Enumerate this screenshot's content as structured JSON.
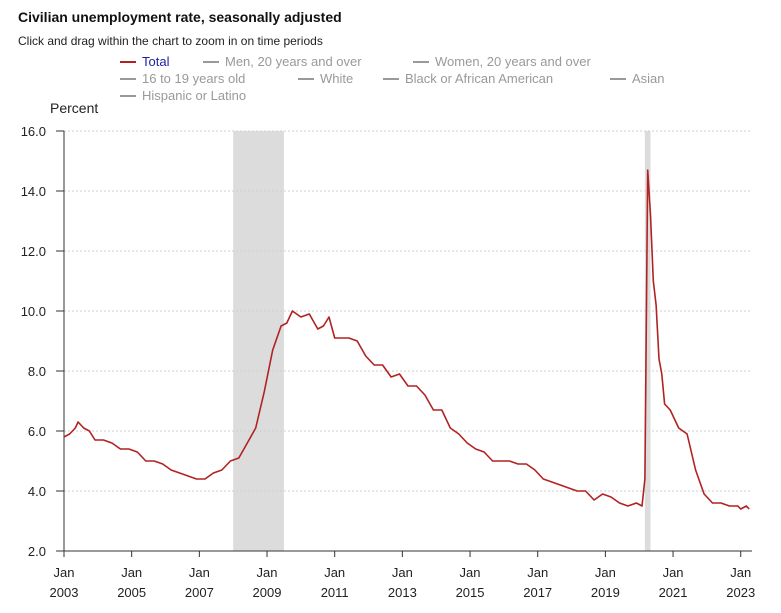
{
  "header": {
    "title": "Civilian unemployment rate, seasonally adjusted",
    "subtitle": "Click and drag within the chart to zoom in on time periods"
  },
  "legend": {
    "items": [
      {
        "label": "Total",
        "active": true
      },
      {
        "label": "Men, 20 years and over",
        "active": false
      },
      {
        "label": "Women, 20 years and over",
        "active": false
      },
      {
        "label": "16 to 19 years old",
        "active": false
      },
      {
        "label": "White",
        "active": false
      },
      {
        "label": "Black or African American",
        "active": false
      },
      {
        "label": "Asian",
        "active": false
      },
      {
        "label": "Hispanic or Latino",
        "active": false
      }
    ]
  },
  "colors": {
    "series": "#b22222",
    "active_legend_text": "#1f1fa3",
    "inactive_legend": "#999999",
    "recession": "#dcdcdc"
  },
  "chart_data": {
    "type": "line",
    "title": "Civilian unemployment rate, seasonally adjusted",
    "ylabel": "Percent",
    "xlabel": "",
    "ylim": [
      2.0,
      16.0
    ],
    "yticks": [
      "2.0",
      "4.0",
      "6.0",
      "8.0",
      "10.0",
      "12.0",
      "14.0",
      "16.0"
    ],
    "xlim": [
      "2003-01",
      "2023-05"
    ],
    "xticks": [
      {
        "date": "2003-01",
        "top": "Jan",
        "bottom": "2003"
      },
      {
        "date": "2005-01",
        "top": "Jan",
        "bottom": "2005"
      },
      {
        "date": "2007-01",
        "top": "Jan",
        "bottom": "2007"
      },
      {
        "date": "2009-01",
        "top": "Jan",
        "bottom": "2009"
      },
      {
        "date": "2011-01",
        "top": "Jan",
        "bottom": "2011"
      },
      {
        "date": "2013-01",
        "top": "Jan",
        "bottom": "2013"
      },
      {
        "date": "2015-01",
        "top": "Jan",
        "bottom": "2015"
      },
      {
        "date": "2017-01",
        "top": "Jan",
        "bottom": "2017"
      },
      {
        "date": "2019-01",
        "top": "Jan",
        "bottom": "2019"
      },
      {
        "date": "2021-01",
        "top": "Jan",
        "bottom": "2021"
      },
      {
        "date": "2023-01",
        "top": "Jan",
        "bottom": "2023"
      }
    ],
    "grid": true,
    "recessions": [
      {
        "start": "2008-01",
        "end": "2009-06"
      },
      {
        "start": "2020-03",
        "end": "2020-04"
      }
    ],
    "series": [
      {
        "name": "Total",
        "points": [
          [
            "2003-01",
            5.8
          ],
          [
            "2003-03",
            5.9
          ],
          [
            "2003-05",
            6.1
          ],
          [
            "2003-06",
            6.3
          ],
          [
            "2003-08",
            6.1
          ],
          [
            "2003-10",
            6.0
          ],
          [
            "2003-12",
            5.7
          ],
          [
            "2004-03",
            5.7
          ],
          [
            "2004-06",
            5.6
          ],
          [
            "2004-09",
            5.4
          ],
          [
            "2004-12",
            5.4
          ],
          [
            "2005-03",
            5.3
          ],
          [
            "2005-06",
            5.0
          ],
          [
            "2005-09",
            5.0
          ],
          [
            "2005-12",
            4.9
          ],
          [
            "2006-03",
            4.7
          ],
          [
            "2006-06",
            4.6
          ],
          [
            "2006-09",
            4.5
          ],
          [
            "2006-12",
            4.4
          ],
          [
            "2007-03",
            4.4
          ],
          [
            "2007-06",
            4.6
          ],
          [
            "2007-09",
            4.7
          ],
          [
            "2007-12",
            5.0
          ],
          [
            "2008-03",
            5.1
          ],
          [
            "2008-06",
            5.6
          ],
          [
            "2008-09",
            6.1
          ],
          [
            "2008-12",
            7.3
          ],
          [
            "2009-03",
            8.7
          ],
          [
            "2009-06",
            9.5
          ],
          [
            "2009-08",
            9.6
          ],
          [
            "2009-10",
            10.0
          ],
          [
            "2010-01",
            9.8
          ],
          [
            "2010-04",
            9.9
          ],
          [
            "2010-07",
            9.4
          ],
          [
            "2010-09",
            9.5
          ],
          [
            "2010-11",
            9.8
          ],
          [
            "2011-01",
            9.1
          ],
          [
            "2011-04",
            9.1
          ],
          [
            "2011-06",
            9.1
          ],
          [
            "2011-09",
            9.0
          ],
          [
            "2011-12",
            8.5
          ],
          [
            "2012-03",
            8.2
          ],
          [
            "2012-06",
            8.2
          ],
          [
            "2012-09",
            7.8
          ],
          [
            "2012-12",
            7.9
          ],
          [
            "2013-03",
            7.5
          ],
          [
            "2013-06",
            7.5
          ],
          [
            "2013-09",
            7.2
          ],
          [
            "2013-12",
            6.7
          ],
          [
            "2014-03",
            6.7
          ],
          [
            "2014-06",
            6.1
          ],
          [
            "2014-09",
            5.9
          ],
          [
            "2014-12",
            5.6
          ],
          [
            "2015-03",
            5.4
          ],
          [
            "2015-06",
            5.3
          ],
          [
            "2015-09",
            5.0
          ],
          [
            "2015-12",
            5.0
          ],
          [
            "2016-03",
            5.0
          ],
          [
            "2016-06",
            4.9
          ],
          [
            "2016-09",
            4.9
          ],
          [
            "2016-12",
            4.7
          ],
          [
            "2017-03",
            4.4
          ],
          [
            "2017-06",
            4.3
          ],
          [
            "2017-09",
            4.2
          ],
          [
            "2017-12",
            4.1
          ],
          [
            "2018-03",
            4.0
          ],
          [
            "2018-06",
            4.0
          ],
          [
            "2018-09",
            3.7
          ],
          [
            "2018-12",
            3.9
          ],
          [
            "2019-03",
            3.8
          ],
          [
            "2019-06",
            3.6
          ],
          [
            "2019-09",
            3.5
          ],
          [
            "2019-12",
            3.6
          ],
          [
            "2020-02",
            3.5
          ],
          [
            "2020-03",
            4.4
          ],
          [
            "2020-04",
            14.7
          ],
          [
            "2020-05",
            13.2
          ],
          [
            "2020-06",
            11.0
          ],
          [
            "2020-07",
            10.2
          ],
          [
            "2020-08",
            8.4
          ],
          [
            "2020-09",
            7.9
          ],
          [
            "2020-10",
            6.9
          ],
          [
            "2020-12",
            6.7
          ],
          [
            "2021-03",
            6.1
          ],
          [
            "2021-06",
            5.9
          ],
          [
            "2021-09",
            4.7
          ],
          [
            "2021-12",
            3.9
          ],
          [
            "2022-03",
            3.6
          ],
          [
            "2022-06",
            3.6
          ],
          [
            "2022-09",
            3.5
          ],
          [
            "2022-12",
            3.5
          ],
          [
            "2023-01",
            3.4
          ],
          [
            "2023-03",
            3.5
          ],
          [
            "2023-04",
            3.4
          ]
        ]
      }
    ]
  }
}
